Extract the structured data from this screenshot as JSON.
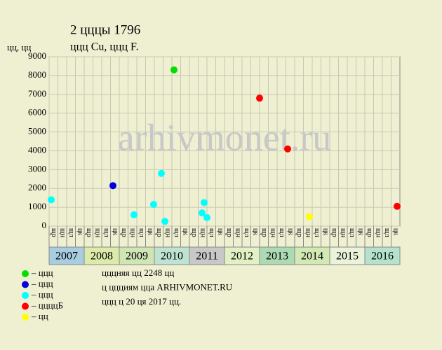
{
  "chart_data": {
    "type": "scatter",
    "title": "2 цццы 1796",
    "subtitle": "ццц Cu, ццц F.",
    "y_label": "цц, цц",
    "watermark": "arhivmonet.ru",
    "xlim": [
      2007,
      2017
    ],
    "xticks": [
      2007,
      2008,
      2009,
      2010,
      2011,
      2012,
      2013,
      2014,
      2015,
      2016
    ],
    "band_colors": [
      "#a8cce0",
      "#dcebaa",
      "#cfe6b4",
      "#bfe3d2",
      "#c8c8c8",
      "#e2f0c4",
      "#abdab4",
      "#d2e9b4",
      "#eaf2da",
      "#b4e2cc"
    ],
    "quarter_labels": [
      "щр",
      "щн",
      "щл",
      "цк"
    ],
    "ylim": [
      0,
      9000
    ],
    "yticks": [
      0,
      1000,
      2000,
      3000,
      4000,
      5000,
      6000,
      7000,
      8000,
      9000
    ],
    "grid": true,
    "series": [
      {
        "name": "– ццц",
        "color": "#00e000",
        "x": [
          2010.56
        ],
        "values": [
          8300
        ]
      },
      {
        "name": "– ццц",
        "color": "#0000dd",
        "x": [
          2008.82
        ],
        "values": [
          2150
        ]
      },
      {
        "name": "– ццц",
        "color": "#00ffff",
        "x": [
          2007.06,
          2009.42,
          2009.98,
          2010.2,
          2010.3,
          2011.36,
          2011.42,
          2011.5
        ],
        "values": [
          1400,
          600,
          1150,
          2800,
          250,
          700,
          1250,
          450
        ]
      },
      {
        "name": "– ццццБ",
        "color": "#ff0000",
        "x": [
          2013.0,
          2013.8,
          2016.92
        ],
        "values": [
          6800,
          4100,
          1050
        ]
      },
      {
        "name": "– цц",
        "color": "#ffff00",
        "x": [
          2014.42
        ],
        "values": [
          500
        ]
      }
    ],
    "notes": [
      "цццняя цц 2248 цц",
      "ц ццциям цца ARHIVMONET.RU",
      "ццц ц 20 ця 2017 цц."
    ]
  }
}
